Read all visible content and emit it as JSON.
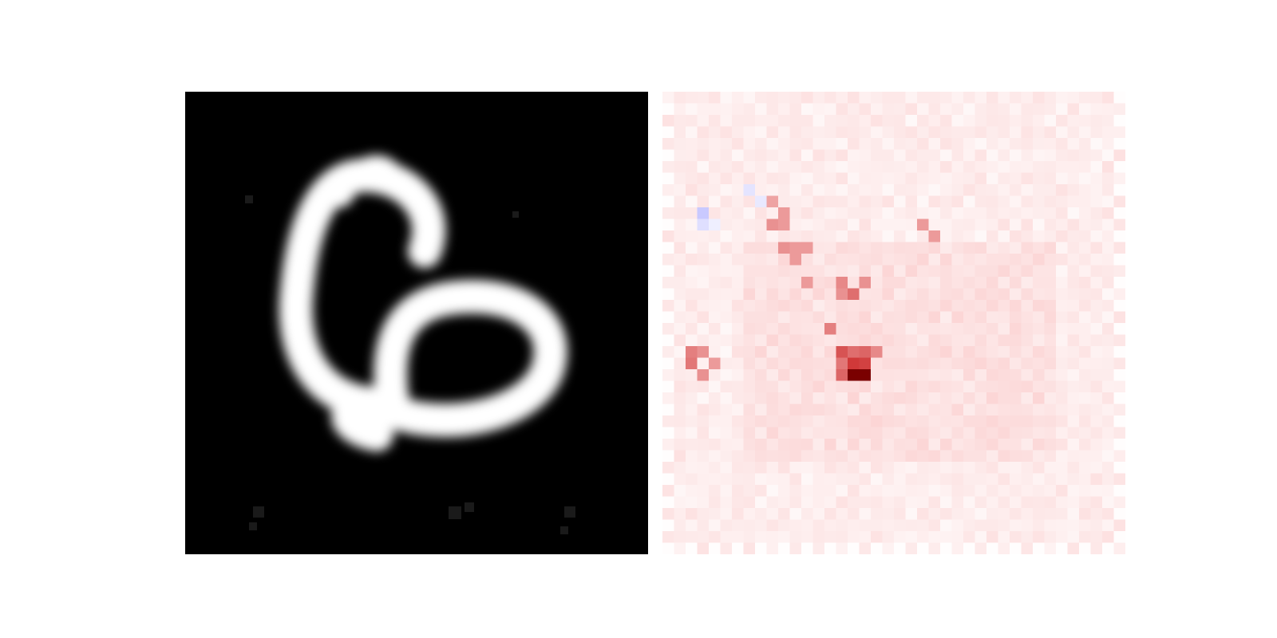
{
  "figure": {
    "panels": [
      {
        "name": "input-digit-image",
        "colormap": "gray",
        "grid": 28
      },
      {
        "name": "attribution-heatmap",
        "colormap": "bwr",
        "grid": 40
      }
    ]
  },
  "colors": {
    "digit_background": "#000000",
    "digit_stroke": "#ffffff",
    "heatmap_base": "#fde3e3",
    "heatmap_light": "#fbcfcf",
    "heatmap_strong": "#c81e1e",
    "heatmap_darkest": "#7a0000",
    "heatmap_negative": "#c9c9ff"
  }
}
